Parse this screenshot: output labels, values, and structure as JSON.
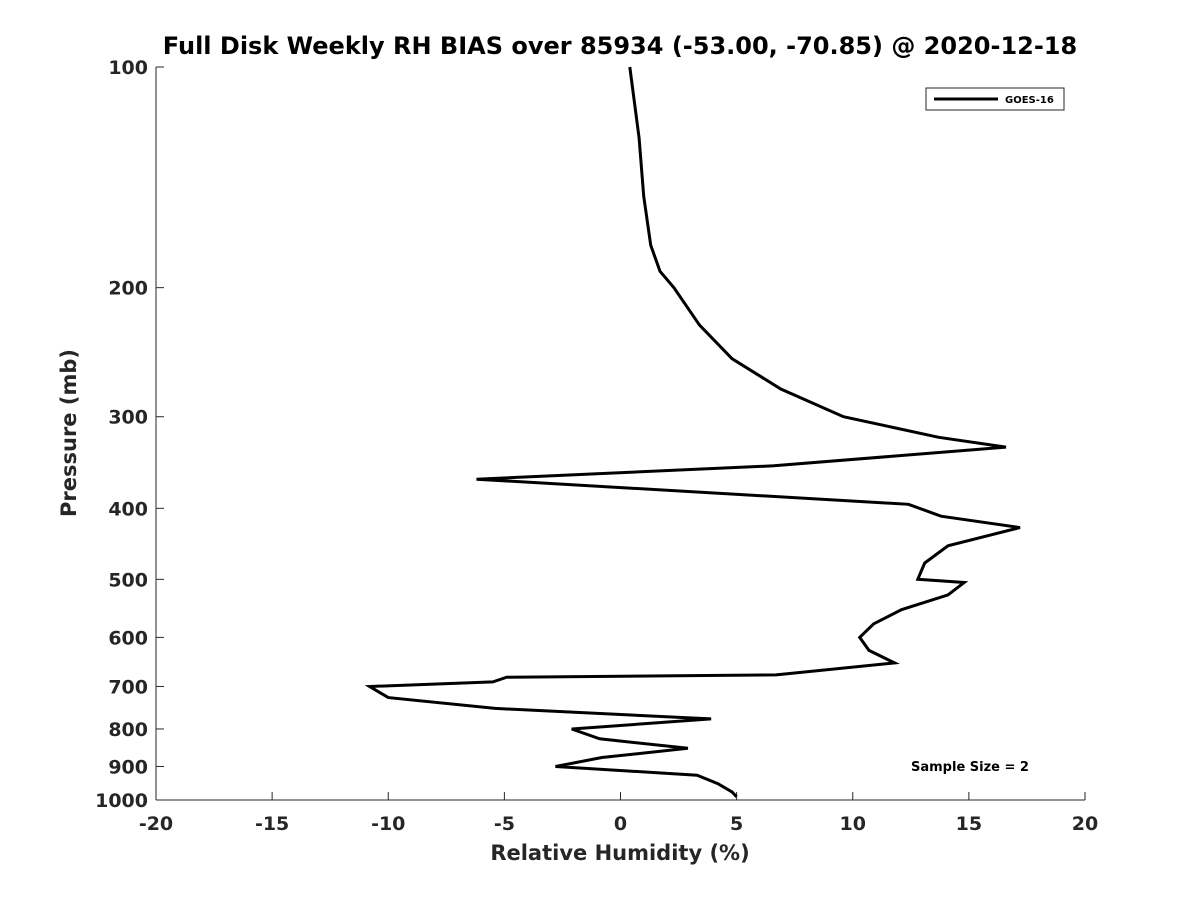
{
  "chart_data": {
    "type": "line",
    "title": "Full Disk Weekly RH BIAS over 85934 (-53.00, -70.85) @ 2020-12-18",
    "xlabel": "Relative Humidity (%)",
    "ylabel": "Pressure (mb)",
    "xlim": [
      -20,
      20
    ],
    "ylim": [
      100,
      1000
    ],
    "y_scale": "log",
    "y_reversed": true,
    "grid": false,
    "legend_position": "top-right",
    "x_ticks": [
      "-20",
      "-15",
      "-10",
      "-5",
      "0",
      "5",
      "10",
      "15",
      "20"
    ],
    "y_ticks": [
      "100",
      "200",
      "300",
      "400",
      "500",
      "600",
      "700",
      "800",
      "900",
      "1000"
    ],
    "series": [
      {
        "name": "GOES-16",
        "color": "#000000",
        "points": [
          [
            0.4,
            100
          ],
          [
            0.8,
            125
          ],
          [
            1.0,
            150
          ],
          [
            1.3,
            175
          ],
          [
            1.7,
            190
          ],
          [
            2.3,
            200
          ],
          [
            3.4,
            225
          ],
          [
            4.8,
            250
          ],
          [
            6.9,
            275
          ],
          [
            9.6,
            300
          ],
          [
            13.7,
            320
          ],
          [
            16.6,
            330
          ],
          [
            6.6,
            350
          ],
          [
            -6.2,
            365
          ],
          [
            12.4,
            395
          ],
          [
            13.8,
            410
          ],
          [
            17.2,
            425
          ],
          [
            14.1,
            450
          ],
          [
            13.1,
            475
          ],
          [
            12.8,
            500
          ],
          [
            14.8,
            505
          ],
          [
            14.1,
            525
          ],
          [
            12.1,
            550
          ],
          [
            10.9,
            575
          ],
          [
            10.3,
            600
          ],
          [
            10.7,
            625
          ],
          [
            11.8,
            650
          ],
          [
            6.7,
            675
          ],
          [
            -4.9,
            680
          ],
          [
            -5.5,
            690
          ],
          [
            -10.8,
            700
          ],
          [
            -10.0,
            725
          ],
          [
            -5.4,
            750
          ],
          [
            3.9,
            775
          ],
          [
            -2.1,
            800
          ],
          [
            -0.9,
            825
          ],
          [
            2.9,
            850
          ],
          [
            -0.8,
            875
          ],
          [
            -2.8,
            900
          ],
          [
            3.3,
            925
          ],
          [
            4.2,
            950
          ],
          [
            4.8,
            975
          ],
          [
            5.0,
            990
          ]
        ]
      }
    ],
    "annotations": [
      "Sample Size = 2"
    ]
  }
}
